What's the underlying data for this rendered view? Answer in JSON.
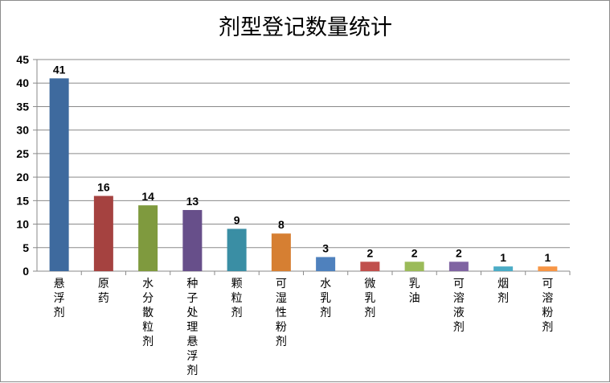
{
  "chart_data": {
    "type": "bar",
    "title": "剂型登记数量统计",
    "categories": [
      "悬浮剂",
      "原药",
      "水分散粒剂",
      "种子处理悬浮剂",
      "颗粒剂",
      "可湿性粉剂",
      "水乳剂",
      "微乳剂",
      "乳油",
      "可溶液剂",
      "烟剂",
      "可溶粉剂"
    ],
    "values": [
      41,
      16,
      14,
      13,
      9,
      8,
      3,
      2,
      2,
      2,
      1,
      1
    ],
    "colors": [
      "#3e6a9e",
      "#a54240",
      "#7f9a3e",
      "#674f8a",
      "#3a8ea4",
      "#d67f32",
      "#4f81bd",
      "#c0504d",
      "#9bbb59",
      "#8064a2",
      "#4bacc6",
      "#f79646"
    ],
    "ylim": [
      0,
      45
    ],
    "yticks": [
      0,
      5,
      10,
      15,
      20,
      25,
      30,
      35,
      40,
      45
    ],
    "xlabel": "",
    "ylabel": "",
    "grid": true,
    "legend": "none"
  }
}
